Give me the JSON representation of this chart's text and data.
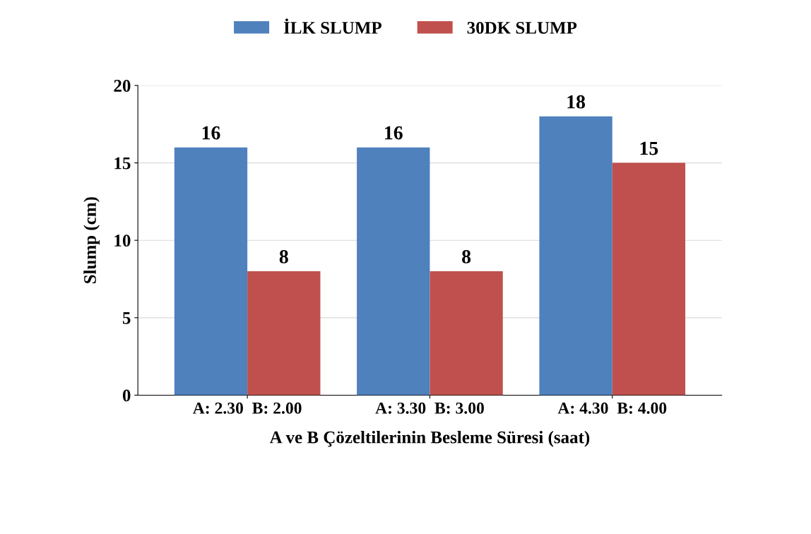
{
  "chart_data": {
    "type": "bar",
    "xlabel": "A ve B Çözeltilerinin Besleme Süresi (saat)",
    "ylabel": "Slump (cm)",
    "categories": [
      "A: 2.30  B: 2.00",
      "A: 3.30  B: 3.00",
      "A: 4.30  B: 4.00"
    ],
    "series": [
      {
        "name": "İLK SLUMP",
        "color": "#4f81bd",
        "values": [
          16,
          16,
          18
        ]
      },
      {
        "name": "30DK SLUMP",
        "color": "#c0504d",
        "values": [
          8,
          8,
          15
        ]
      }
    ],
    "ylim": [
      0,
      20
    ],
    "yticks": [
      0,
      5,
      10,
      15,
      20
    ],
    "grid": "y",
    "legend": "top",
    "data_labels": true
  }
}
